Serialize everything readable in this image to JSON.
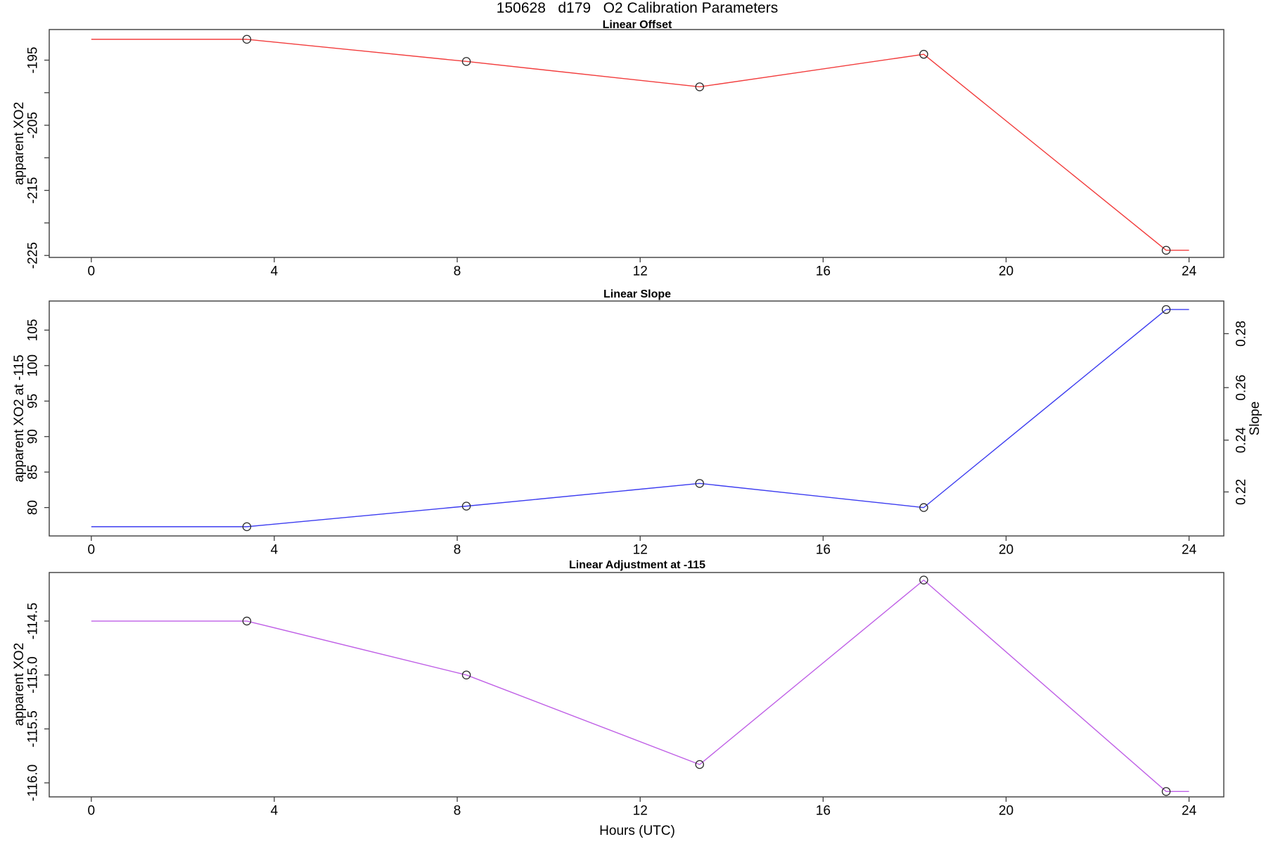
{
  "suptitle": "150628   d179   O2 Calibration Parameters",
  "xlabel": "Hours (UTC)",
  "marker": {
    "shape": "open-circle",
    "color": "#2b2b2b",
    "radius": 5.6
  },
  "axis_color": "#3d3d3d",
  "chart_data": [
    {
      "type": "line",
      "title": "Linear Offset",
      "ylabel": "apparent XO2",
      "line_color": "#f23c3c",
      "x": [
        3.4,
        8.2,
        13.3,
        18.2,
        23.5
      ],
      "y": [
        -191.8,
        -195.2,
        -199.1,
        -194.1,
        -224.2
      ],
      "line_x": [
        0,
        3.4,
        8.2,
        13.3,
        18.2,
        23.5,
        24
      ],
      "line_y": [
        -191.8,
        -191.8,
        -195.2,
        -199.1,
        -194.1,
        -224.2,
        -224.2
      ],
      "xlim": [
        -0.92,
        24.76
      ],
      "ylim": [
        -225.3,
        -190.3
      ],
      "xticks": [
        0,
        4,
        8,
        12,
        16,
        20,
        24
      ],
      "yticks": [
        {
          "label": "-195",
          "at": -195
        },
        {
          "label": "-205",
          "at": -205
        },
        {
          "label": "-215",
          "at": -215
        },
        {
          "label": "-225",
          "at": -225
        }
      ],
      "yticks_minor": [
        -200,
        -210,
        -220
      ],
      "grid": false,
      "legend": null
    },
    {
      "type": "line",
      "title": "Linear Slope",
      "ylabel": "apparent XO2 at -115",
      "y2label": "Slope",
      "line_color": "#3c3cf0",
      "x": [
        3.4,
        8.2,
        13.3,
        18.2,
        23.5
      ],
      "y": [
        77.3,
        80.2,
        83.4,
        80.0,
        107.9
      ],
      "line_x": [
        0,
        3.4,
        8.2,
        13.3,
        18.2,
        23.5,
        24
      ],
      "line_y": [
        77.3,
        77.3,
        80.2,
        83.4,
        80.0,
        107.9,
        107.9
      ],
      "xlim": [
        -0.92,
        24.76
      ],
      "ylim": [
        76.0,
        109.1
      ],
      "xticks": [
        0,
        4,
        8,
        12,
        16,
        20,
        24
      ],
      "yticks": [
        {
          "label": "80",
          "at": 80
        },
        {
          "label": "85",
          "at": 85
        },
        {
          "label": "90",
          "at": 90
        },
        {
          "label": "95",
          "at": 95
        },
        {
          "label": "100",
          "at": 100
        },
        {
          "label": "105",
          "at": 105
        }
      ],
      "yticks_minor": [],
      "y2ticks": [
        {
          "label": "0.22",
          "at": 82.2
        },
        {
          "label": "0.24",
          "at": 89.5
        },
        {
          "label": "0.26",
          "at": 96.9
        },
        {
          "label": "0.28",
          "at": 104.5
        }
      ],
      "grid": false,
      "legend": null
    },
    {
      "type": "line",
      "title": "Linear Adjustment at -115",
      "ylabel": "apparent XO2",
      "line_color": "#bf5fe6",
      "x": [
        3.4,
        8.2,
        13.3,
        18.2,
        23.5
      ],
      "y": [
        -114.5,
        -115.0,
        -115.83,
        -114.12,
        -116.08
      ],
      "line_x": [
        0,
        3.4,
        8.2,
        13.3,
        18.2,
        23.5,
        24
      ],
      "line_y": [
        -114.5,
        -114.5,
        -115.0,
        -115.83,
        -114.12,
        -116.08,
        -116.08
      ],
      "xlim": [
        -0.92,
        24.76
      ],
      "ylim": [
        -116.13,
        -114.05
      ],
      "xticks": [
        0,
        4,
        8,
        12,
        16,
        20,
        24
      ],
      "yticks": [
        {
          "label": "-114.5",
          "at": -114.5
        },
        {
          "label": "-115.0",
          "at": -115.0
        },
        {
          "label": "-115.5",
          "at": -115.5
        },
        {
          "label": "-116.0",
          "at": -116.0
        }
      ],
      "yticks_minor": [],
      "grid": false,
      "legend": null
    }
  ]
}
